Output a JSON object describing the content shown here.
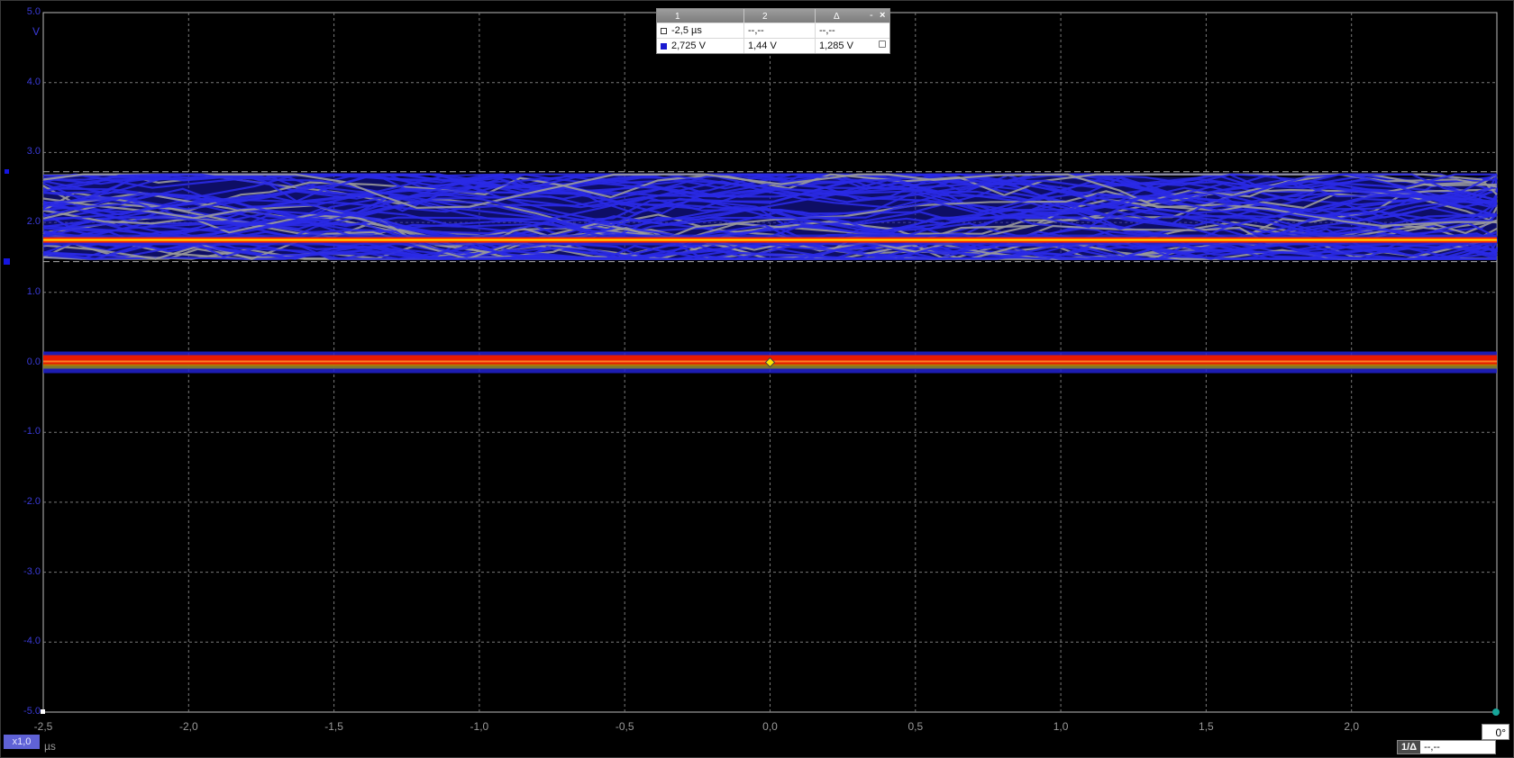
{
  "y_axis": {
    "unit": "V",
    "ticks": [
      "5.0",
      "4.0",
      "3.0",
      "2.0",
      "1.0",
      "0.0",
      "-1.0",
      "-2.0",
      "-3.0",
      "-4.0",
      "-5.0"
    ],
    "range": [
      -5,
      5
    ]
  },
  "x_axis": {
    "unit": "µs",
    "ticks": [
      "-2,5",
      "-2,0",
      "-1,5",
      "-1,0",
      "-0,5",
      "0,0",
      "0,5",
      "1,0",
      "1,5",
      "2,0"
    ],
    "range": [
      -2.5,
      2.5
    ]
  },
  "cursors": {
    "header": [
      "1",
      "2",
      "Δ"
    ],
    "time_row": [
      "-2,5 µs",
      "--,--",
      "--,--"
    ],
    "voltage_row": [
      "2,725 V",
      "1,44 V",
      "1,285 V"
    ],
    "minimize_label": "-",
    "close_label": "×",
    "v1": 2.725,
    "v2": 1.44
  },
  "zoom_badge": "x1,0",
  "angle_value": "0°",
  "ratio": {
    "label": "1/Δ",
    "value": "--,--"
  },
  "colors": {
    "axis_text": "#3a3ad8",
    "trace_blue": "#2a2ae6",
    "trace_hot": "#ff2a00",
    "trace_yellow": "#ffe600",
    "grid": "#7a7a7a"
  },
  "signal": {
    "noisy_band_low_v": 1.44,
    "noisy_band_high_v": 2.725,
    "persistent_level_v": 1.75,
    "ground_level_v": 0.0
  }
}
